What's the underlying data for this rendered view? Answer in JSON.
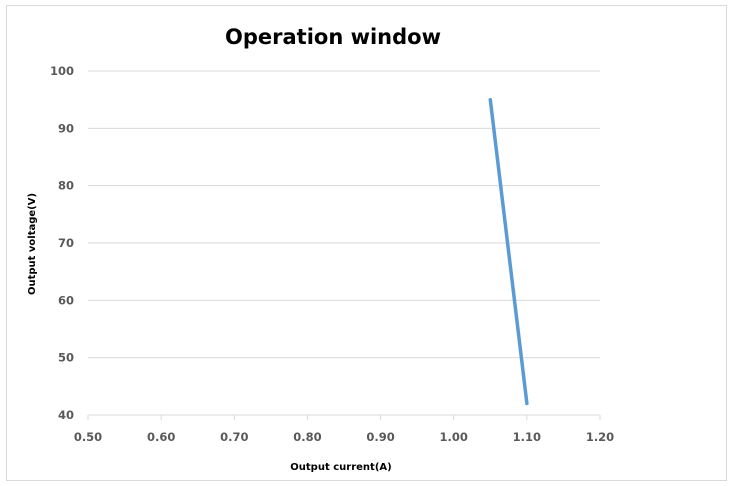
{
  "chart_data": {
    "type": "line",
    "title": "Operation window",
    "xlabel": "Output current(A)",
    "ylabel": "Output voltage(V)",
    "xlim": [
      0.5,
      1.2
    ],
    "ylim": [
      40,
      100
    ],
    "x_ticks": [
      "0.50",
      "0.60",
      "0.70",
      "0.80",
      "0.90",
      "1.00",
      "1.10",
      "1.20"
    ],
    "y_ticks": [
      "40",
      "50",
      "60",
      "70",
      "80",
      "90",
      "100"
    ],
    "grid": "horizontal",
    "legend": "none",
    "series": [
      {
        "color": "#5b9bd5",
        "points": [
          {
            "x": 1.05,
            "y": 95
          },
          {
            "x": 1.1,
            "y": 42
          }
        ]
      }
    ]
  }
}
